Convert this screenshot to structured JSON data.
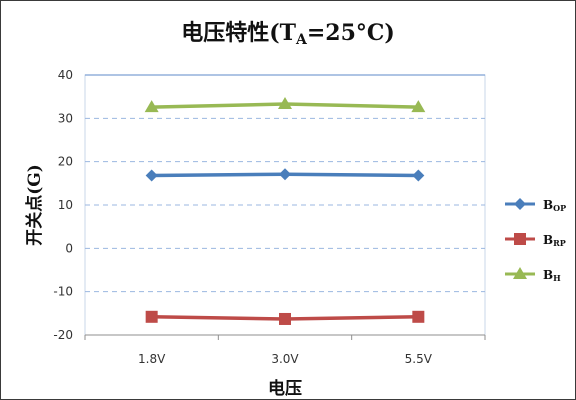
{
  "chart_data": {
    "type": "line",
    "title": {
      "prefix": "电压特性(T",
      "sub": "A",
      "suffix": "=25°C)"
    },
    "xlabel": "电压",
    "ylabel": "开关点(G)",
    "categories": [
      "1.8V",
      "3.0V",
      "5.5V"
    ],
    "ylim": [
      -20,
      40
    ],
    "yticks": [
      40,
      30,
      20,
      10,
      0,
      -10,
      -20
    ],
    "ytick_labels": [
      "40",
      "30",
      "20",
      "10",
      "0",
      "-10",
      "-20"
    ],
    "grid": true,
    "legend_position": "right",
    "series": [
      {
        "name": "BOP",
        "name_main": "B",
        "name_sub": "OP",
        "color": "#4a7ebb",
        "marker": "diamond",
        "values": [
          16.8,
          17.1,
          16.8
        ]
      },
      {
        "name": "BRP",
        "name_main": "B",
        "name_sub": "RP",
        "color": "#be4b48",
        "marker": "square",
        "values": [
          -15.8,
          -16.3,
          -15.8
        ]
      },
      {
        "name": "BH",
        "name_main": "B",
        "name_sub": "H",
        "color": "#98b954",
        "marker": "triangle",
        "values": [
          32.6,
          33.3,
          32.6
        ]
      }
    ]
  }
}
